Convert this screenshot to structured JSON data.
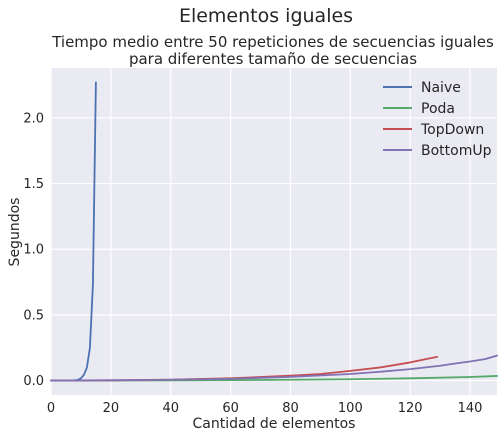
{
  "chart_data": {
    "type": "line",
    "title": "Elementos iguales",
    "subtitle_lines": [
      "Tiempo medio entre 50 repeticiones de secuencias iguales",
      "para diferentes tamaño de secuencias"
    ],
    "xlabel": "Cantidad de elementos",
    "ylabel": "Segundos",
    "xlim": [
      0,
      149
    ],
    "ylim": [
      -0.11,
      2.38
    ],
    "x_ticks": [
      0,
      20,
      40,
      60,
      80,
      100,
      120,
      140
    ],
    "x_tick_labels": [
      "0",
      "20",
      "40",
      "60",
      "80",
      "100",
      "120",
      "140"
    ],
    "y_ticks": [
      0.0,
      0.5,
      1.0,
      1.5,
      2.0
    ],
    "y_tick_labels": [
      "0.0",
      "0.5",
      "1.0",
      "1.5",
      "2.0"
    ],
    "grid": true,
    "legend_position": "top-right",
    "series": [
      {
        "name": "Naive",
        "color": "#4c72b0",
        "x": [
          0,
          5,
          8,
          9,
          10,
          11,
          12,
          13,
          14,
          15
        ],
        "y": [
          0.0,
          0.0,
          0.002,
          0.006,
          0.017,
          0.044,
          0.1,
          0.25,
          0.73,
          2.27
        ]
      },
      {
        "name": "Poda",
        "color": "#55a868",
        "x": [
          0,
          20,
          40,
          60,
          80,
          100,
          120,
          140,
          149
        ],
        "y": [
          0.0,
          0.0005,
          0.0015,
          0.003,
          0.006,
          0.01,
          0.017,
          0.027,
          0.035
        ]
      },
      {
        "name": "TopDown",
        "color": "#c44e52",
        "x": [
          0,
          20,
          40,
          60,
          80,
          90,
          100,
          110,
          120,
          125,
          129
        ],
        "y": [
          0.0,
          0.002,
          0.007,
          0.017,
          0.037,
          0.05,
          0.074,
          0.1,
          0.138,
          0.162,
          0.18
        ]
      },
      {
        "name": "BottomUp",
        "color": "#8172b2",
        "x": [
          0,
          20,
          40,
          60,
          80,
          100,
          110,
          120,
          130,
          135,
          140,
          145,
          149
        ],
        "y": [
          0.0,
          0.002,
          0.006,
          0.013,
          0.028,
          0.05,
          0.067,
          0.087,
          0.113,
          0.13,
          0.145,
          0.163,
          0.19
        ]
      }
    ]
  }
}
